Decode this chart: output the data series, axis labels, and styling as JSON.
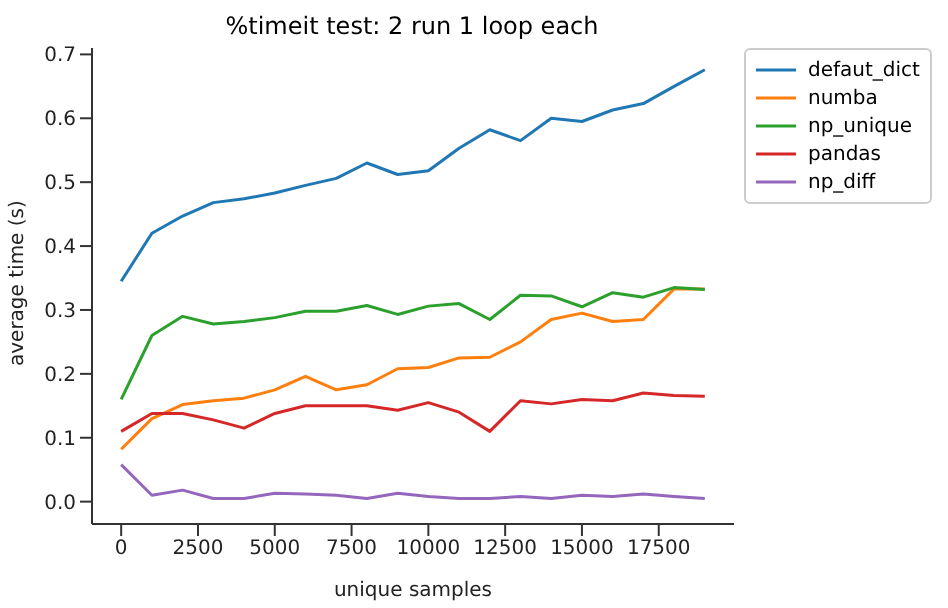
{
  "chart_data": {
    "type": "line",
    "title": "%timeit test: 2 run 1 loop each",
    "xlabel": "unique samples",
    "ylabel": "average time (s)",
    "x": [
      0,
      1000,
      2000,
      3000,
      4000,
      5000,
      6000,
      7000,
      8000,
      9000,
      10000,
      11000,
      12000,
      13000,
      14000,
      15000,
      16000,
      17000,
      18000,
      19000
    ],
    "series": [
      {
        "name": "defaut_dict",
        "color": "#1f77b4",
        "values": [
          0.345,
          0.42,
          0.447,
          0.468,
          0.474,
          0.483,
          0.495,
          0.506,
          0.53,
          0.512,
          0.518,
          0.553,
          0.582,
          0.565,
          0.6,
          0.595,
          0.613,
          0.623,
          0.65,
          0.676
        ]
      },
      {
        "name": "numba",
        "color": "#ff7f0e",
        "values": [
          0.082,
          0.13,
          0.152,
          0.158,
          0.162,
          0.175,
          0.196,
          0.175,
          0.183,
          0.208,
          0.21,
          0.225,
          0.226,
          0.25,
          0.285,
          0.295,
          0.282,
          0.285,
          0.333,
          0.333
        ]
      },
      {
        "name": "np_unique",
        "color": "#2ca02c",
        "values": [
          0.16,
          0.26,
          0.29,
          0.278,
          0.282,
          0.288,
          0.298,
          0.298,
          0.307,
          0.293,
          0.306,
          0.31,
          0.285,
          0.323,
          0.322,
          0.305,
          0.327,
          0.32,
          0.335,
          0.332
        ]
      },
      {
        "name": "pandas",
        "color": "#d62728",
        "values": [
          0.11,
          0.138,
          0.138,
          0.128,
          0.115,
          0.138,
          0.15,
          0.15,
          0.15,
          0.143,
          0.155,
          0.14,
          0.11,
          0.158,
          0.153,
          0.16,
          0.158,
          0.17,
          0.166,
          0.165
        ]
      },
      {
        "name": "np_diff",
        "color": "#9467bd",
        "values": [
          0.058,
          0.01,
          0.018,
          0.005,
          0.005,
          0.013,
          0.012,
          0.01,
          0.005,
          0.013,
          0.008,
          0.005,
          0.005,
          0.008,
          0.005,
          0.01,
          0.008,
          0.012,
          0.008,
          0.005
        ]
      }
    ],
    "xlim": [
      -950,
      19950
    ],
    "xticks": [
      0,
      2500,
      5000,
      7500,
      10000,
      12500,
      15000,
      17500
    ],
    "ylim": [
      -0.035,
      0.71
    ],
    "yticks": [
      {
        "value": 0,
        "label": "0.0"
      },
      {
        "value": 0.1,
        "label": "0.1"
      },
      {
        "value": 0.2,
        "label": "0.2"
      },
      {
        "value": 0.3,
        "label": "0.3"
      },
      {
        "value": 0.4,
        "label": "0.4"
      },
      {
        "value": 0.5,
        "label": "0.5"
      },
      {
        "value": 0.6,
        "label": "0.6"
      },
      {
        "value": 0.7,
        "label": "0.7"
      }
    ],
    "grid": false,
    "legend": "top right",
    "marker": "none",
    "line_style": "solid"
  }
}
